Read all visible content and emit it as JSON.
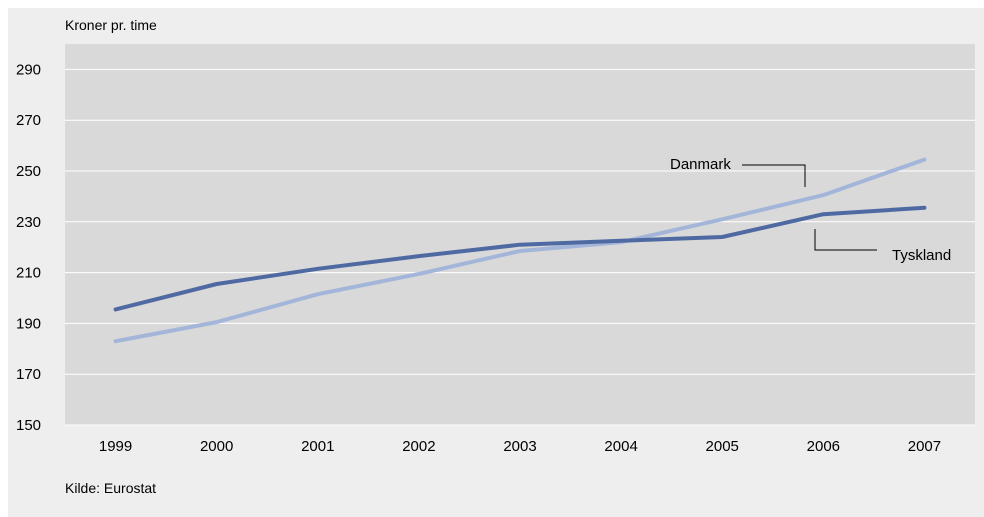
{
  "chart_data": {
    "type": "line",
    "ylabel": "Kroner pr. time",
    "source": "Kilde: Eurostat",
    "categories": [
      "1999",
      "2000",
      "2001",
      "2002",
      "2003",
      "2004",
      "2005",
      "2006",
      "2007"
    ],
    "ylim": [
      150,
      300
    ],
    "yticks": [
      150,
      170,
      190,
      210,
      230,
      250,
      270,
      290
    ],
    "grid": true,
    "series": [
      {
        "name": "Danmark",
        "color": "#a3b6d9",
        "values": [
          183,
          190.5,
          201.5,
          209.5,
          218.5,
          222,
          231,
          240.5,
          254.5
        ]
      },
      {
        "name": "Tyskland",
        "color": "#4f6aa3",
        "values": [
          195.5,
          205.5,
          211.5,
          216.5,
          221,
          222.5,
          224,
          233,
          235.5
        ]
      }
    ]
  }
}
